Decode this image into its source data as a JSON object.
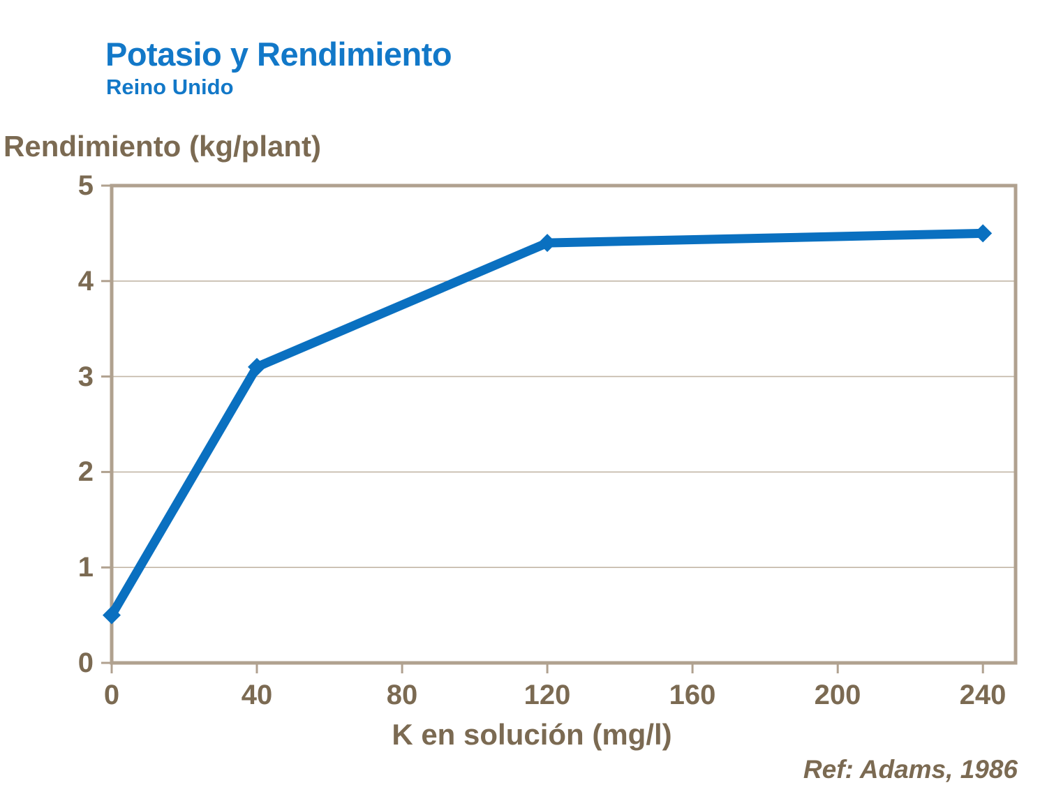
{
  "header": {
    "title": "Potasio y Rendimiento",
    "subtitle": "Reino Unido",
    "title_color": "#1278c8"
  },
  "footer": {
    "reference": "Ref: Adams, 1986"
  },
  "chart_data": {
    "type": "line",
    "title": "Potasio y Rendimiento",
    "subtitle": "Reino Unido",
    "xlabel": "K en solución (mg/l)",
    "ylabel": "Rendimiento (kg/plant)",
    "x": [
      0,
      40,
      120,
      240
    ],
    "y": [
      0.5,
      3.1,
      4.4,
      4.5
    ],
    "xlim": [
      0,
      249
    ],
    "ylim": [
      0,
      5
    ],
    "x_ticks": [
      0,
      40,
      80,
      120,
      160,
      200,
      240
    ],
    "y_ticks": [
      0,
      1,
      2,
      3,
      4,
      5
    ],
    "grid": "horizontal-only",
    "legend": "none",
    "marker": "diamond",
    "line_width": 13,
    "line_color": "#0a70c0",
    "frame_color": "#b0a18f",
    "gridline_color": "#c2b6a6",
    "text_color": "#7b6a52",
    "annotation": "Ref: Adams, 1986"
  }
}
